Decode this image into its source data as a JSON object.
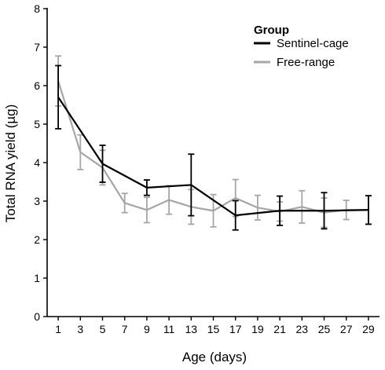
{
  "chart_data": {
    "type": "line",
    "xlabel": "Age (days)",
    "ylabel": "Total RNA yield (µg)",
    "xlim": [
      0,
      30
    ],
    "ylim": [
      0,
      8
    ],
    "x_ticks": [
      1,
      3,
      5,
      7,
      9,
      11,
      13,
      15,
      17,
      19,
      21,
      23,
      25,
      27,
      29
    ],
    "y_ticks": [
      0,
      1,
      2,
      3,
      4,
      5,
      6,
      7,
      8
    ],
    "grid": false,
    "legend": {
      "title": "Group",
      "position": "top-right"
    },
    "series": [
      {
        "name": "Sentinel-cage",
        "color": "#000000",
        "x": [
          1,
          5,
          9,
          13,
          17,
          21,
          25,
          29
        ],
        "y": [
          5.7,
          3.97,
          3.35,
          3.42,
          2.63,
          2.75,
          2.75,
          2.77
        ],
        "error": [
          0.82,
          0.48,
          0.2,
          0.8,
          0.38,
          0.38,
          0.47,
          0.37
        ]
      },
      {
        "name": "Free-range",
        "color": "#a6a6a6",
        "x": [
          1,
          3,
          5,
          7,
          9,
          11,
          13,
          15,
          17,
          19,
          21,
          23,
          25,
          27,
          29
        ],
        "y": [
          6.12,
          4.27,
          3.87,
          2.95,
          2.77,
          3.03,
          2.85,
          2.75,
          3.08,
          2.83,
          2.73,
          2.85,
          2.7,
          2.77,
          2.77
        ],
        "error": [
          0.65,
          0.45,
          0.45,
          0.25,
          0.33,
          0.37,
          0.45,
          0.42,
          0.48,
          0.32,
          0.25,
          0.42,
          0.38,
          0.25,
          0.37
        ]
      }
    ]
  }
}
